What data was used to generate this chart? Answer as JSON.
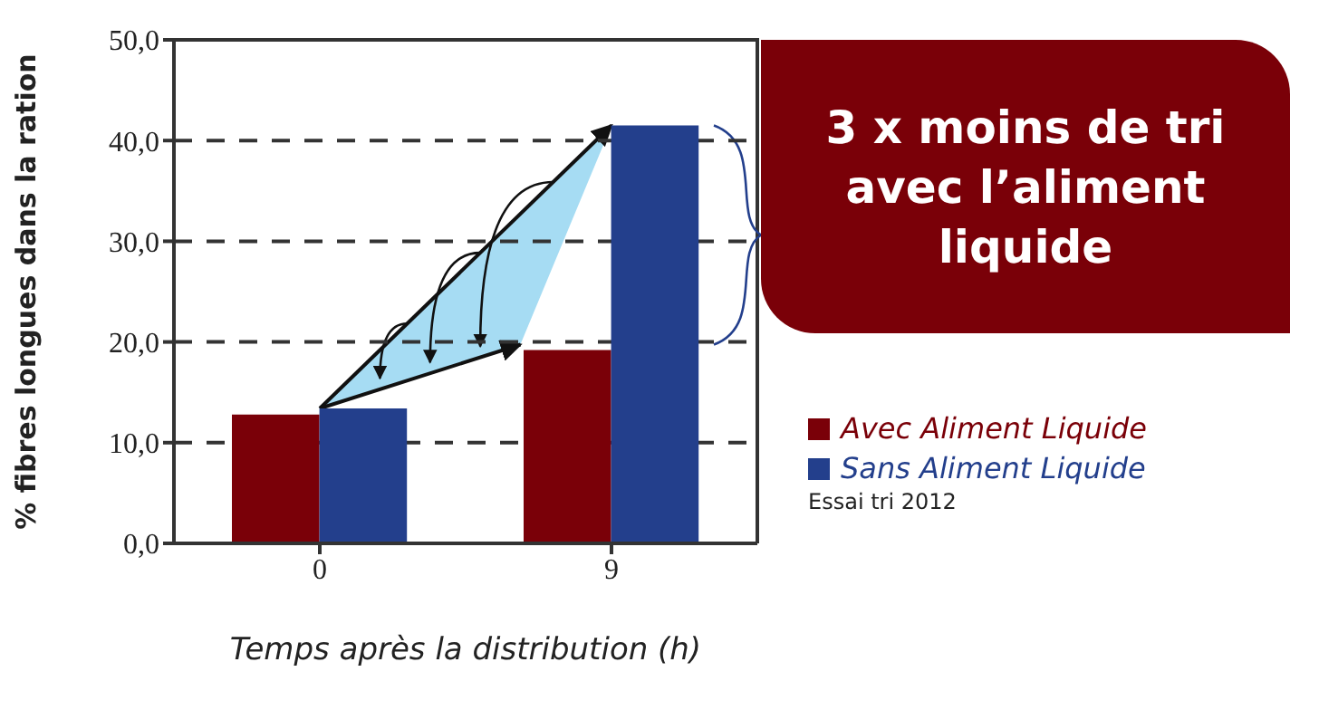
{
  "chart_data": {
    "type": "bar",
    "ylabel": "% fibres longues dans la ration",
    "xlabel": "Temps après la distribution (h)",
    "categories": [
      "0",
      "9"
    ],
    "series": [
      {
        "name": "Avec Aliment Liquide",
        "color": "#7a0008",
        "values": [
          12.8,
          19.2
        ]
      },
      {
        "name": "Sans Aliment Liquide",
        "color": "#233f8c",
        "values": [
          13.4,
          41.5
        ]
      }
    ],
    "ylim": [
      0,
      50
    ],
    "yticks": [
      {
        "value": 0,
        "label": "0,0"
      },
      {
        "value": 10,
        "label": "10,0"
      },
      {
        "value": 20,
        "label": "20,0"
      },
      {
        "value": 30,
        "label": "30,0"
      },
      {
        "value": 40,
        "label": "40,0"
      },
      {
        "value": 50,
        "label": "50,0"
      }
    ],
    "grid": "y",
    "legend": "right",
    "annotations": [
      "3 x moins de tri avec l’aliment liquide",
      "Essai tri 2012"
    ]
  }
}
